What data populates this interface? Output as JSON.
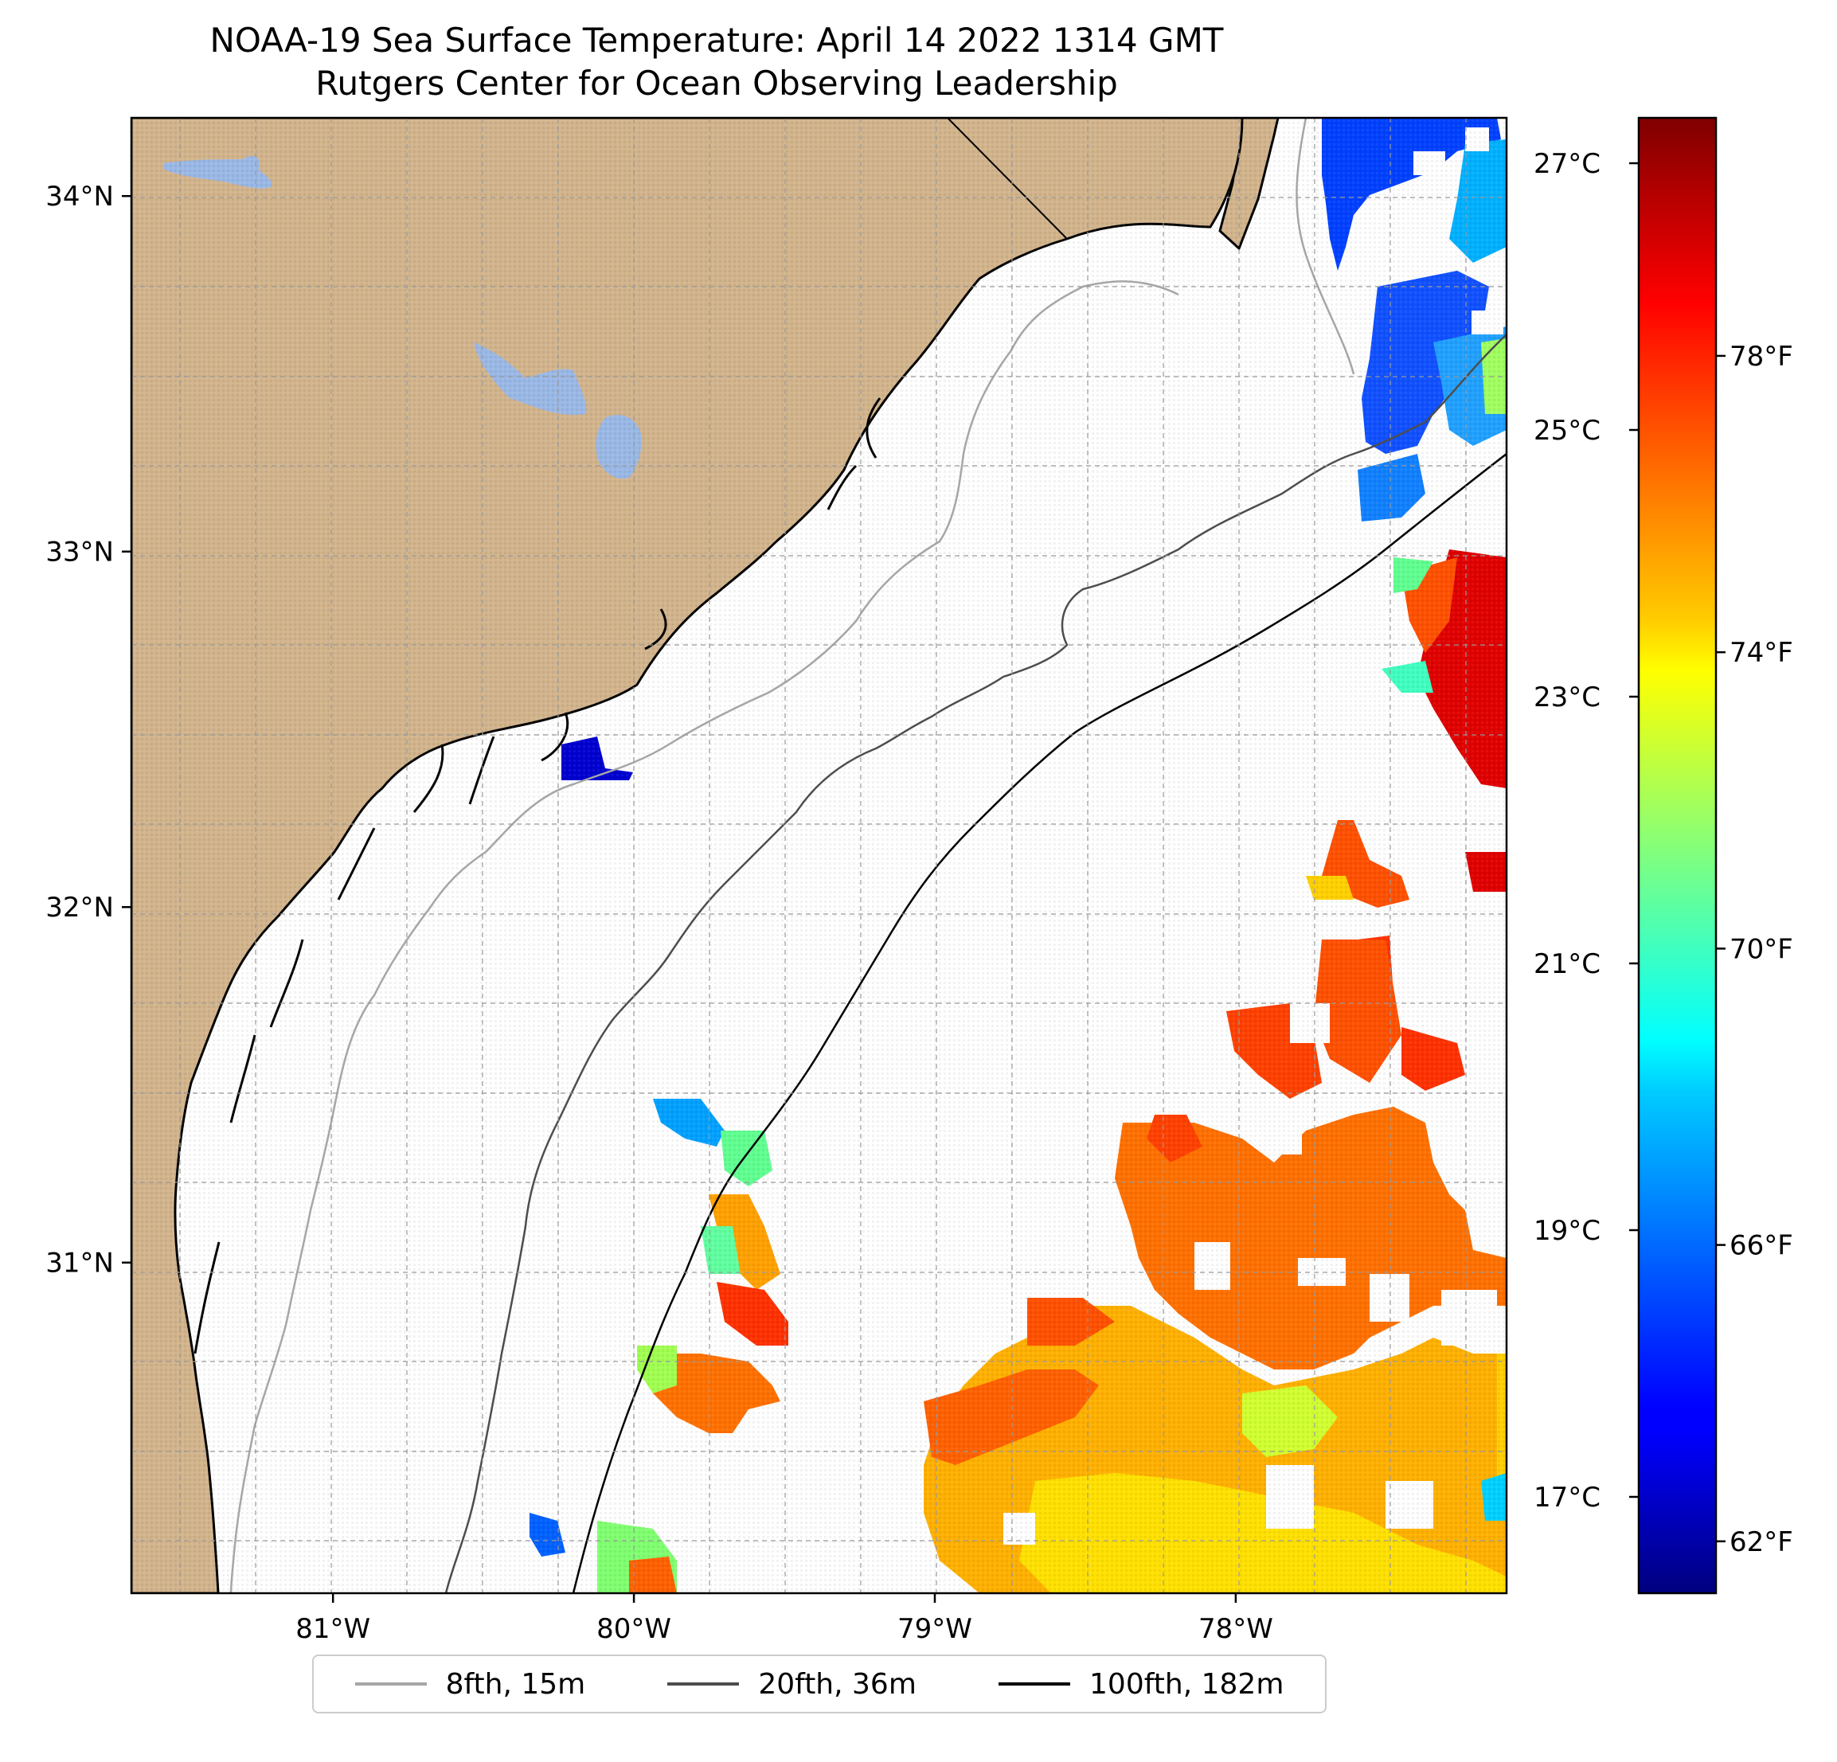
{
  "title": {
    "line1": "NOAA-19 Sea Surface Temperature: April 14 2022 1314 GMT",
    "line2": "Rutgers Center for Ocean Observing Leadership"
  },
  "map": {
    "lon_range": [
      -81.67,
      -77.1
    ],
    "lat_range": [
      30.07,
      34.22
    ],
    "land_color": "#d2b48c",
    "lake_color": "#9ab8e6",
    "grid": "dashed",
    "lat_ticks": [
      {
        "value": 34,
        "label": "34°N"
      },
      {
        "value": 33,
        "label": "33°N"
      },
      {
        "value": 32,
        "label": "32°N"
      },
      {
        "value": 31,
        "label": "31°N"
      }
    ],
    "lon_ticks": [
      {
        "value": -81,
        "label": "81°W"
      },
      {
        "value": -80,
        "label": "80°W"
      },
      {
        "value": -79,
        "label": "79°W"
      },
      {
        "value": -78,
        "label": "78°W"
      }
    ]
  },
  "colorbar": {
    "colormap": "jet",
    "celsius_ticks": [
      {
        "value": 27,
        "label": "27°C"
      },
      {
        "value": 25,
        "label": "25°C"
      },
      {
        "value": 23,
        "label": "23°C"
      },
      {
        "value": 21,
        "label": "21°C"
      },
      {
        "value": 19,
        "label": "19°C"
      },
      {
        "value": 17,
        "label": "17°C"
      }
    ],
    "fahrenheit_ticks": [
      {
        "value": 78,
        "label": "78°F"
      },
      {
        "value": 74,
        "label": "74°F"
      },
      {
        "value": 70,
        "label": "70°F"
      },
      {
        "value": 66,
        "label": "66°F"
      },
      {
        "value": 62,
        "label": "62°F"
      }
    ]
  },
  "legend": {
    "items": [
      {
        "label": "8fth, 15m",
        "color": "#a6a6a6"
      },
      {
        "label": "20fth, 36m",
        "color": "#4d4d4d"
      },
      {
        "label": "100fth, 182m",
        "color": "#000000"
      }
    ]
  }
}
